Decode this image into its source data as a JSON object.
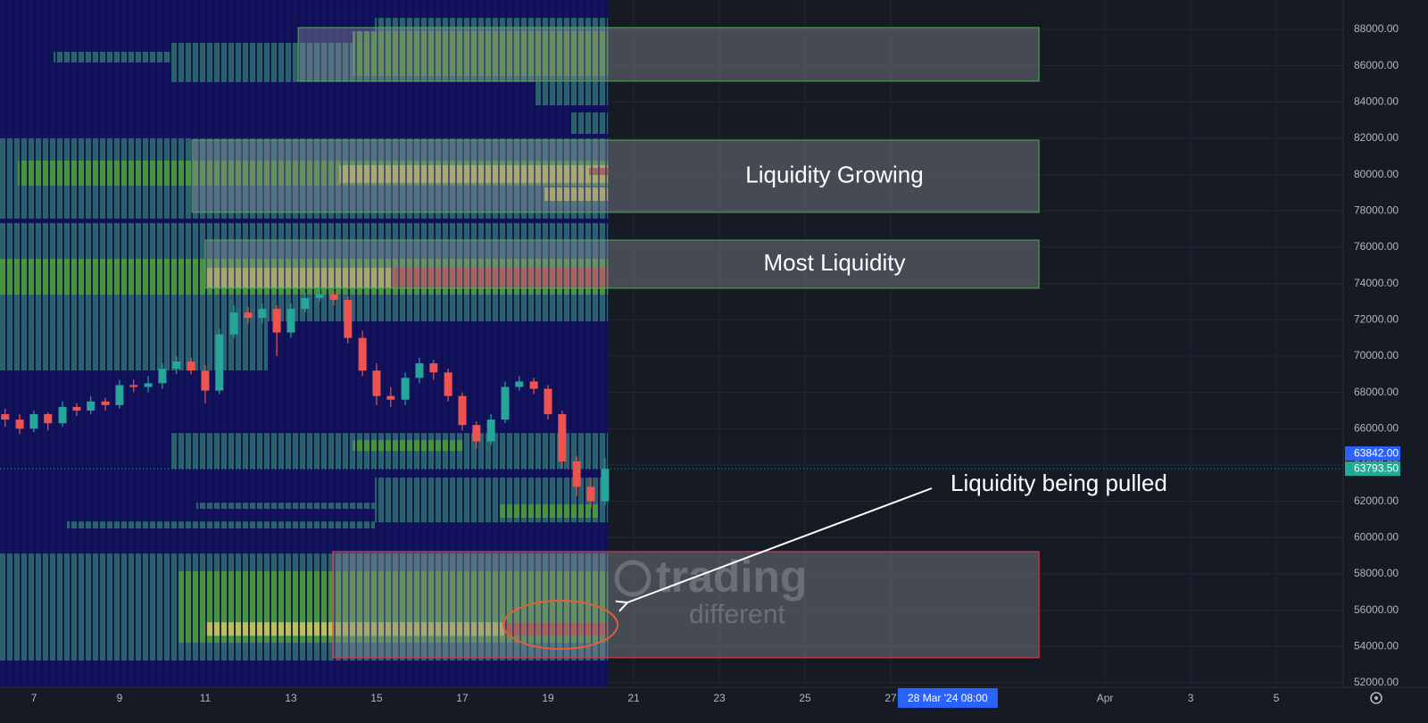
{
  "chart_data": {
    "type": "candlestick",
    "x": [
      6.33,
      6.67,
      7,
      7.33,
      7.67,
      8,
      8.33,
      8.67,
      9,
      9.33,
      9.67,
      10,
      10.33,
      10.67,
      11,
      11.33,
      11.67,
      12,
      12.33,
      12.67,
      13,
      13.33,
      13.67,
      14,
      14.33,
      14.67,
      15,
      15.33,
      15.67,
      16,
      16.33,
      16.67,
      17,
      17.33,
      17.67,
      18,
      18.33,
      18.67,
      19,
      19.33,
      19.67,
      20,
      20.33
    ],
    "open": [
      66800,
      66500,
      66000,
      66800,
      66300,
      67200,
      67000,
      67500,
      67300,
      68400,
      68300,
      68500,
      69300,
      69700,
      69200,
      68100,
      71200,
      72400,
      72100,
      72600,
      71300,
      72600,
      73200,
      73400,
      73100,
      71000,
      69200,
      67800,
      67600,
      68800,
      69600,
      69100,
      67800,
      66200,
      65300,
      66500,
      68300,
      68600,
      68200,
      66800,
      64200,
      62800,
      62000
    ],
    "high": [
      67100,
      66800,
      67000,
      66900,
      67500,
      67400,
      67800,
      67700,
      68700,
      68700,
      68900,
      69600,
      70000,
      69900,
      69500,
      71500,
      72800,
      72700,
      72900,
      72800,
      72900,
      73500,
      73700,
      73600,
      73300,
      71400,
      69600,
      68300,
      69100,
      69900,
      69800,
      69300,
      68000,
      66400,
      66800,
      68600,
      68900,
      68800,
      68400,
      67000,
      64500,
      63300,
      64400
    ],
    "low": [
      66100,
      65700,
      65800,
      65900,
      66100,
      66700,
      66800,
      67000,
      67100,
      68000,
      68000,
      68200,
      69000,
      69000,
      67400,
      67900,
      71000,
      71800,
      71800,
      70000,
      71000,
      72400,
      73000,
      72800,
      70700,
      68900,
      67300,
      67200,
      67300,
      68500,
      68700,
      67500,
      65900,
      64900,
      65100,
      66300,
      68100,
      67900,
      66500,
      63800,
      62300,
      61600,
      61800
    ],
    "close": [
      66500,
      66000,
      66800,
      66300,
      67200,
      67000,
      67500,
      67300,
      68400,
      68300,
      68500,
      69300,
      69700,
      69200,
      68100,
      71200,
      72400,
      72100,
      72600,
      71300,
      72600,
      73200,
      73400,
      73100,
      71000,
      69200,
      67800,
      67600,
      68800,
      69600,
      69100,
      67800,
      66200,
      65300,
      66500,
      68300,
      68600,
      68200,
      66800,
      64200,
      62800,
      62000,
      63793.5
    ],
    "up_color": "#26a69a",
    "down_color": "#ef5350",
    "heatmap": [
      {
        "x": [
          10.21,
          20.4
        ],
        "price": [
          85100,
          87260
        ],
        "color": "#2f6b70"
      },
      {
        "x": [
          7.46,
          10.21
        ],
        "price": [
          86180,
          86770
        ],
        "color": "#2f6b70"
      },
      {
        "x": [
          14.96,
          20.4
        ],
        "price": [
          87260,
          88640
        ],
        "color": "#2f6b70"
      },
      {
        "x": [
          14.44,
          20.4
        ],
        "price": [
          85440,
          87900
        ],
        "color": "#4b9a3a"
      },
      {
        "x": [
          18.71,
          20.4
        ],
        "price": [
          83820,
          85100
        ],
        "color": "#2f6b70"
      },
      {
        "x": [
          19.54,
          20.4
        ],
        "price": [
          82240,
          83420
        ],
        "color": "#2f6b70"
      },
      {
        "x": [
          6.21,
          20.4
        ],
        "price": [
          77570,
          82000
        ],
        "color": "#2f6b70"
      },
      {
        "x": [
          6.63,
          20.4
        ],
        "price": [
          79390,
          80770
        ],
        "color": "#4b9a3a"
      },
      {
        "x": [
          14.13,
          20.4
        ],
        "price": [
          79540,
          80520
        ],
        "color": "#c9c25a"
      },
      {
        "x": [
          19.96,
          20.4
        ],
        "price": [
          79980,
          80370
        ],
        "color": "#b73a32"
      },
      {
        "x": [
          18.92,
          20.4
        ],
        "price": [
          78550,
          79290
        ],
        "color": "#c9c25a"
      },
      {
        "x": [
          6.21,
          20.4
        ],
        "price": [
          71910,
          77320
        ],
        "color": "#2f6b70"
      },
      {
        "x": [
          6.21,
          20.4
        ],
        "price": [
          73390,
          75360
        ],
        "color": "#4b9a3a"
      },
      {
        "x": [
          11,
          20.4
        ],
        "price": [
          73780,
          74870
        ],
        "color": "#c9c25a"
      },
      {
        "x": [
          15.38,
          20.4
        ],
        "price": [
          73780,
          74870
        ],
        "color": "#b73a32"
      },
      {
        "x": [
          6.21,
          12.46
        ],
        "price": [
          69210,
          71910
        ],
        "color": "#2f6b70"
      },
      {
        "x": [
          10.21,
          20.4
        ],
        "price": [
          63790,
          65760
        ],
        "color": "#2f6b70"
      },
      {
        "x": [
          14.44,
          17.04
        ],
        "price": [
          64780,
          65370
        ],
        "color": "#4b9a3a"
      },
      {
        "x": [
          14.96,
          20.4
        ],
        "price": [
          60840,
          63300
        ],
        "color": "#2f6b70"
      },
      {
        "x": [
          17.88,
          20.17
        ],
        "price": [
          61090,
          61830
        ],
        "color": "#4b9a3a"
      },
      {
        "x": [
          7.77,
          14.96
        ],
        "price": [
          60500,
          60890
        ],
        "color": "#2f6b70"
      },
      {
        "x": [
          10.79,
          14.96
        ],
        "price": [
          61580,
          61920
        ],
        "color": "#2f6b70"
      },
      {
        "x": [
          6.21,
          20.4
        ],
        "price": [
          53220,
          59120
        ],
        "color": "#2f6b70"
      },
      {
        "x": [
          10.38,
          20.4
        ],
        "price": [
          54200,
          58140
        ],
        "color": "#4b9a3a"
      },
      {
        "x": [
          11,
          20.4
        ],
        "price": [
          54590,
          55330
        ],
        "color": "#c9c25a"
      },
      {
        "x": [
          17.98,
          20.4
        ],
        "price": [
          54590,
          55330
        ],
        "color": "#b73a32"
      }
    ],
    "zones": [
      {
        "x": [
          13.17,
          30.46
        ],
        "price": [
          85150,
          88100
        ],
        "border": "#4caf50"
      },
      {
        "label": "Liquidity Growing",
        "x": [
          10.69,
          30.46
        ],
        "price": [
          77920,
          81900
        ],
        "border": "#4caf50"
      },
      {
        "label": "Most Liquidity",
        "x": [
          11.0,
          30.46
        ],
        "price": [
          73740,
          76390
        ],
        "border": "#4caf50"
      },
      {
        "x": [
          13.98,
          30.46
        ],
        "price": [
          53380,
          59230
        ],
        "border": "#f23645"
      }
    ],
    "annotation": "Liquidity being pulled",
    "watermark": [
      "trading",
      "different"
    ],
    "price_markers": [
      {
        "value": 63842,
        "label": "63842.00",
        "color": "#2962ff"
      },
      {
        "value": 63793.5,
        "label": "63793.50",
        "color": "#22ab94"
      }
    ],
    "crosshair": {
      "x": 28.33,
      "label": "28 Mar '24 08:00"
    },
    "xlim": [
      6.21,
      37.56
    ],
    "xticks": [
      7,
      9,
      11,
      13,
      15,
      17,
      19,
      21,
      23,
      25,
      27,
      {
        "value": 32,
        "label": "Apr"
      },
      {
        "value": 34,
        "label": "3"
      },
      {
        "value": 36,
        "label": "5"
      }
    ],
    "ylim": [
      51750,
      89620
    ],
    "yticks": [
      {
        "value": 52000,
        "label": "52000.00"
      },
      {
        "value": 54000,
        "label": "54000.00"
      },
      {
        "value": 56000,
        "label": "56000.00"
      },
      {
        "value": 58000,
        "label": "58000.00"
      },
      {
        "value": 60000,
        "label": "60000.00"
      },
      {
        "value": 62000,
        "label": "62000.00"
      },
      {
        "value": 64000,
        "label": "64000.00"
      },
      {
        "value": 66000,
        "label": "66000.00"
      },
      {
        "value": 68000,
        "label": "68000.00"
      },
      {
        "value": 70000,
        "label": "70000.00"
      },
      {
        "value": 72000,
        "label": "72000.00"
      },
      {
        "value": 74000,
        "label": "74000.00"
      },
      {
        "value": 76000,
        "label": "76000.00"
      },
      {
        "value": 78000,
        "label": "78000.00"
      },
      {
        "value": 80000,
        "label": "80000.00"
      },
      {
        "value": 82000,
        "label": "82000.00"
      },
      {
        "value": 84000,
        "label": "84000.00"
      },
      {
        "value": 86000,
        "label": "86000.00"
      },
      {
        "value": 88000,
        "label": "88000.00"
      }
    ],
    "grid": true
  }
}
